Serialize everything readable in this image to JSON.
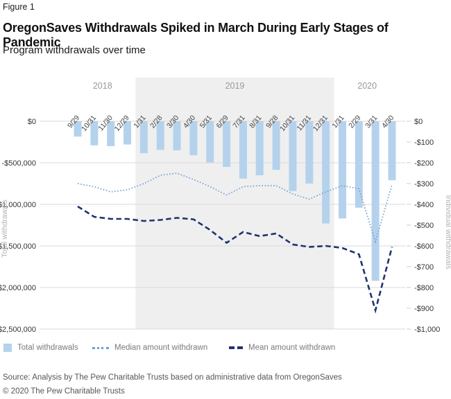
{
  "figure_label": "Figure 1",
  "title": "OregonSaves Withdrawals Spiked in March During Early Stages of Pandemic",
  "subtitle": "Program withdrawals over time",
  "source": "Source: Analysis by The Pew Charitable Trusts based on administrative data from OregonSaves",
  "copyright": "© 2020 The Pew Charitable Trusts",
  "colors": {
    "bar": "#B5D2EC",
    "median_line": "#6F9ED6",
    "mean_line": "#1F3370",
    "gridline": "#D9D9D9",
    "shaded_band": "#EFEFEF",
    "year_label": "#999999",
    "axis_title": "#B3B3B3"
  },
  "legend": [
    {
      "label": "Total withdrawals",
      "mark": "square",
      "color": "#B5D2EC"
    },
    {
      "label": "Median amount withdrawn",
      "mark": "dotted",
      "color": "#6F9ED6"
    },
    {
      "label": "Mean amount withdrawn",
      "mark": "dashed",
      "color": "#1F3370"
    }
  ],
  "chart_data": {
    "type": "bar",
    "categories": [
      "9/29",
      "10/31",
      "11/30",
      "12/29",
      "1/31",
      "2/28",
      "3/30",
      "4/30",
      "5/31",
      "6/29",
      "7/31",
      "8/31",
      "9/28",
      "10/31",
      "11/31",
      "12/31",
      "1/31",
      "2/29",
      "3/31",
      "4/30"
    ],
    "year_groups": [
      {
        "label": "2018",
        "start": 0,
        "end": 3,
        "shaded": false
      },
      {
        "label": "2019",
        "start": 4,
        "end": 15,
        "shaded": true
      },
      {
        "label": "2020",
        "start": 16,
        "end": 19,
        "shaded": false
      }
    ],
    "series": [
      {
        "name": "Total withdrawals",
        "type": "bar",
        "axis": "left",
        "style": "solid",
        "color": "#B5D2EC",
        "values": [
          -185000,
          -290000,
          -300000,
          -280000,
          -385000,
          -345000,
          -350000,
          -410000,
          -495000,
          -550000,
          -690000,
          -650000,
          -585000,
          -840000,
          -750000,
          -1230000,
          -1170000,
          -1040000,
          -1920000,
          -710000
        ]
      },
      {
        "name": "Median amount withdrawn",
        "type": "line",
        "axis": "right",
        "style": "dotted",
        "color": "#6F9ED6",
        "values": [
          -300,
          -315,
          -340,
          -330,
          -300,
          -260,
          -250,
          -280,
          -315,
          -355,
          -315,
          -310,
          -310,
          -350,
          -375,
          -340,
          -310,
          -325,
          -580,
          -305
        ]
      },
      {
        "name": "Mean amount withdrawn",
        "type": "line",
        "axis": "right",
        "style": "dashed",
        "color": "#1F3370",
        "values": [
          -410,
          -460,
          -470,
          -470,
          -480,
          -475,
          -465,
          -472,
          -523,
          -585,
          -533,
          -553,
          -540,
          -593,
          -605,
          -600,
          -610,
          -640,
          -910,
          -605
        ]
      }
    ],
    "left_axis": {
      "title": "Total withdrawals",
      "min": -2500000,
      "max": 0,
      "ticks": [
        "$0",
        "-$500,000",
        "-$1,000,000",
        "-$1,500,000",
        "-$2,000,000",
        "-$2,500,000"
      ]
    },
    "right_axis": {
      "title": "Individual withdrawals",
      "min": -1000,
      "max": 0,
      "ticks": [
        "$0",
        "-$100",
        "-$200",
        "-$300",
        "-$400",
        "-$500",
        "-$600",
        "-$700",
        "-$800",
        "-$900",
        "-$1,000"
      ]
    },
    "grid": true,
    "legend_position": "bottom"
  }
}
